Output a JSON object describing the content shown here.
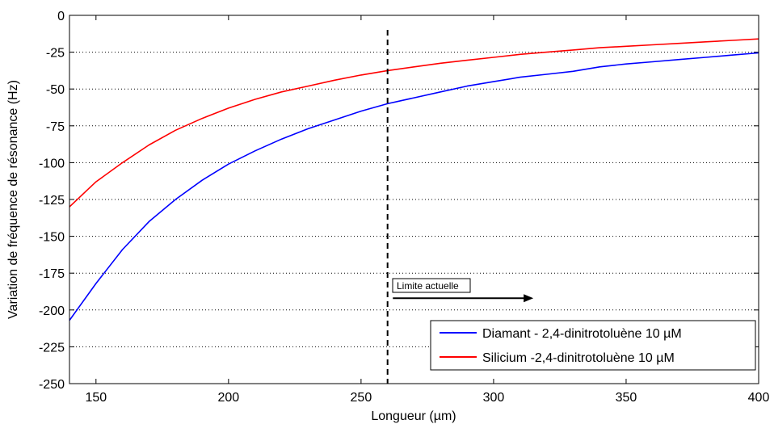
{
  "chart_data": {
    "type": "line",
    "xlabel": "Longueur  (µm)",
    "ylabel": "Variation de fréquence de résonance (Hz)",
    "xlim": [
      140,
      400
    ],
    "ylim": [
      -250,
      0
    ],
    "xticks": [
      150,
      200,
      250,
      300,
      350,
      400
    ],
    "yticks": [
      0,
      -25,
      -50,
      -75,
      -100,
      -125,
      -150,
      -175,
      -200,
      -225,
      -250
    ],
    "grid": true,
    "grid_style": "dotted-horizontal",
    "legend_position": "bottom-right",
    "series": [
      {
        "name": "Diamant - 2,4-dinitrotoluène 10 µM",
        "color": "#0000ff",
        "x": [
          140,
          150,
          160,
          170,
          180,
          190,
          200,
          210,
          220,
          230,
          240,
          250,
          260,
          270,
          280,
          290,
          300,
          310,
          320,
          330,
          340,
          350,
          360,
          370,
          380,
          390,
          400
        ],
        "y": [
          -207,
          -182,
          -159,
          -140,
          -125,
          -112,
          -101,
          -92,
          -84,
          -77,
          -71,
          -65,
          -60,
          -56,
          -52,
          -48,
          -45,
          -42,
          -40,
          -38,
          -35,
          -33,
          -31.5,
          -30,
          -28.5,
          -27,
          -25.5
        ]
      },
      {
        "name": "Silicium -2,4-dinitrotoluène  10 µM",
        "color": "#ff0000",
        "x": [
          140,
          150,
          160,
          170,
          180,
          190,
          200,
          210,
          220,
          230,
          240,
          250,
          260,
          270,
          280,
          290,
          300,
          310,
          320,
          330,
          340,
          350,
          360,
          370,
          380,
          390,
          400
        ],
        "y": [
          -130,
          -113,
          -100,
          -88,
          -78,
          -70,
          -63,
          -57,
          -52,
          -48,
          -44,
          -40.5,
          -37.5,
          -35,
          -32.5,
          -30.5,
          -28.5,
          -26.5,
          -25,
          -23.5,
          -22,
          -21,
          -20,
          -19,
          -18,
          -17,
          -16
        ]
      }
    ],
    "vline": {
      "x": 260,
      "style": "dashed",
      "color": "#000000"
    },
    "annotation": {
      "text": "Limite actuelle",
      "x_start": 262,
      "x_end": 315,
      "y": -192
    }
  }
}
